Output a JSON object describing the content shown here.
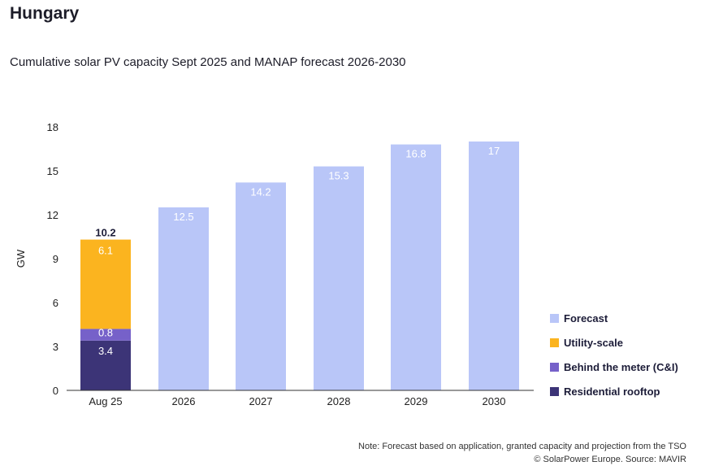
{
  "title": "Hungary",
  "subtitle": "Cumulative solar PV capacity Sept 2025 and MANAP forecast 2026-2030",
  "note": {
    "line1": "Note: Forecast based on application, granted capacity and projection from the TSO",
    "line2": "© SolarPower Europe. Source: MAVIR"
  },
  "colors": {
    "forecast": "#b9c6f8",
    "utility": "#fbb41f",
    "btm": "#7661c9",
    "residential": "#3c3477",
    "axis": "#333333"
  },
  "chart_data": {
    "type": "bar",
    "title": "Cumulative solar PV capacity Sept 2025 and MANAP forecast 2026-2030",
    "xlabel": "",
    "ylabel": "GW",
    "ylim": [
      0,
      18
    ],
    "yticks": [
      "0",
      "3",
      "6",
      "9",
      "12",
      "15",
      "18"
    ],
    "categories": [
      "Aug 25",
      "2026",
      "2027",
      "2028",
      "2029",
      "2030"
    ],
    "stacked_bar": {
      "category": "Aug 25",
      "total_label": "10.2",
      "segments": [
        {
          "name": "Residential rooftop",
          "value": 3.4,
          "label": "3.4",
          "color_key": "residential"
        },
        {
          "name": "Behind the meter (C&I)",
          "value": 0.8,
          "label": "0.8",
          "color_key": "btm"
        },
        {
          "name": "Utility-scale",
          "value": 6.1,
          "label": "6.1",
          "color_key": "utility"
        }
      ]
    },
    "forecast_bars": [
      {
        "category": "2026",
        "value": 12.5,
        "label": "12.5"
      },
      {
        "category": "2027",
        "value": 14.2,
        "label": "14.2"
      },
      {
        "category": "2028",
        "value": 15.3,
        "label": "15.3"
      },
      {
        "category": "2029",
        "value": 16.8,
        "label": "16.8"
      },
      {
        "category": "2030",
        "value": 17,
        "label": "17"
      }
    ],
    "legend": [
      {
        "label": "Forecast",
        "color_key": "forecast"
      },
      {
        "label": "Utility-scale",
        "color_key": "utility"
      },
      {
        "label": "Behind the meter (C&I)",
        "color_key": "btm"
      },
      {
        "label": "Residential rooftop",
        "color_key": "residential"
      }
    ],
    "legend_position": "right"
  }
}
